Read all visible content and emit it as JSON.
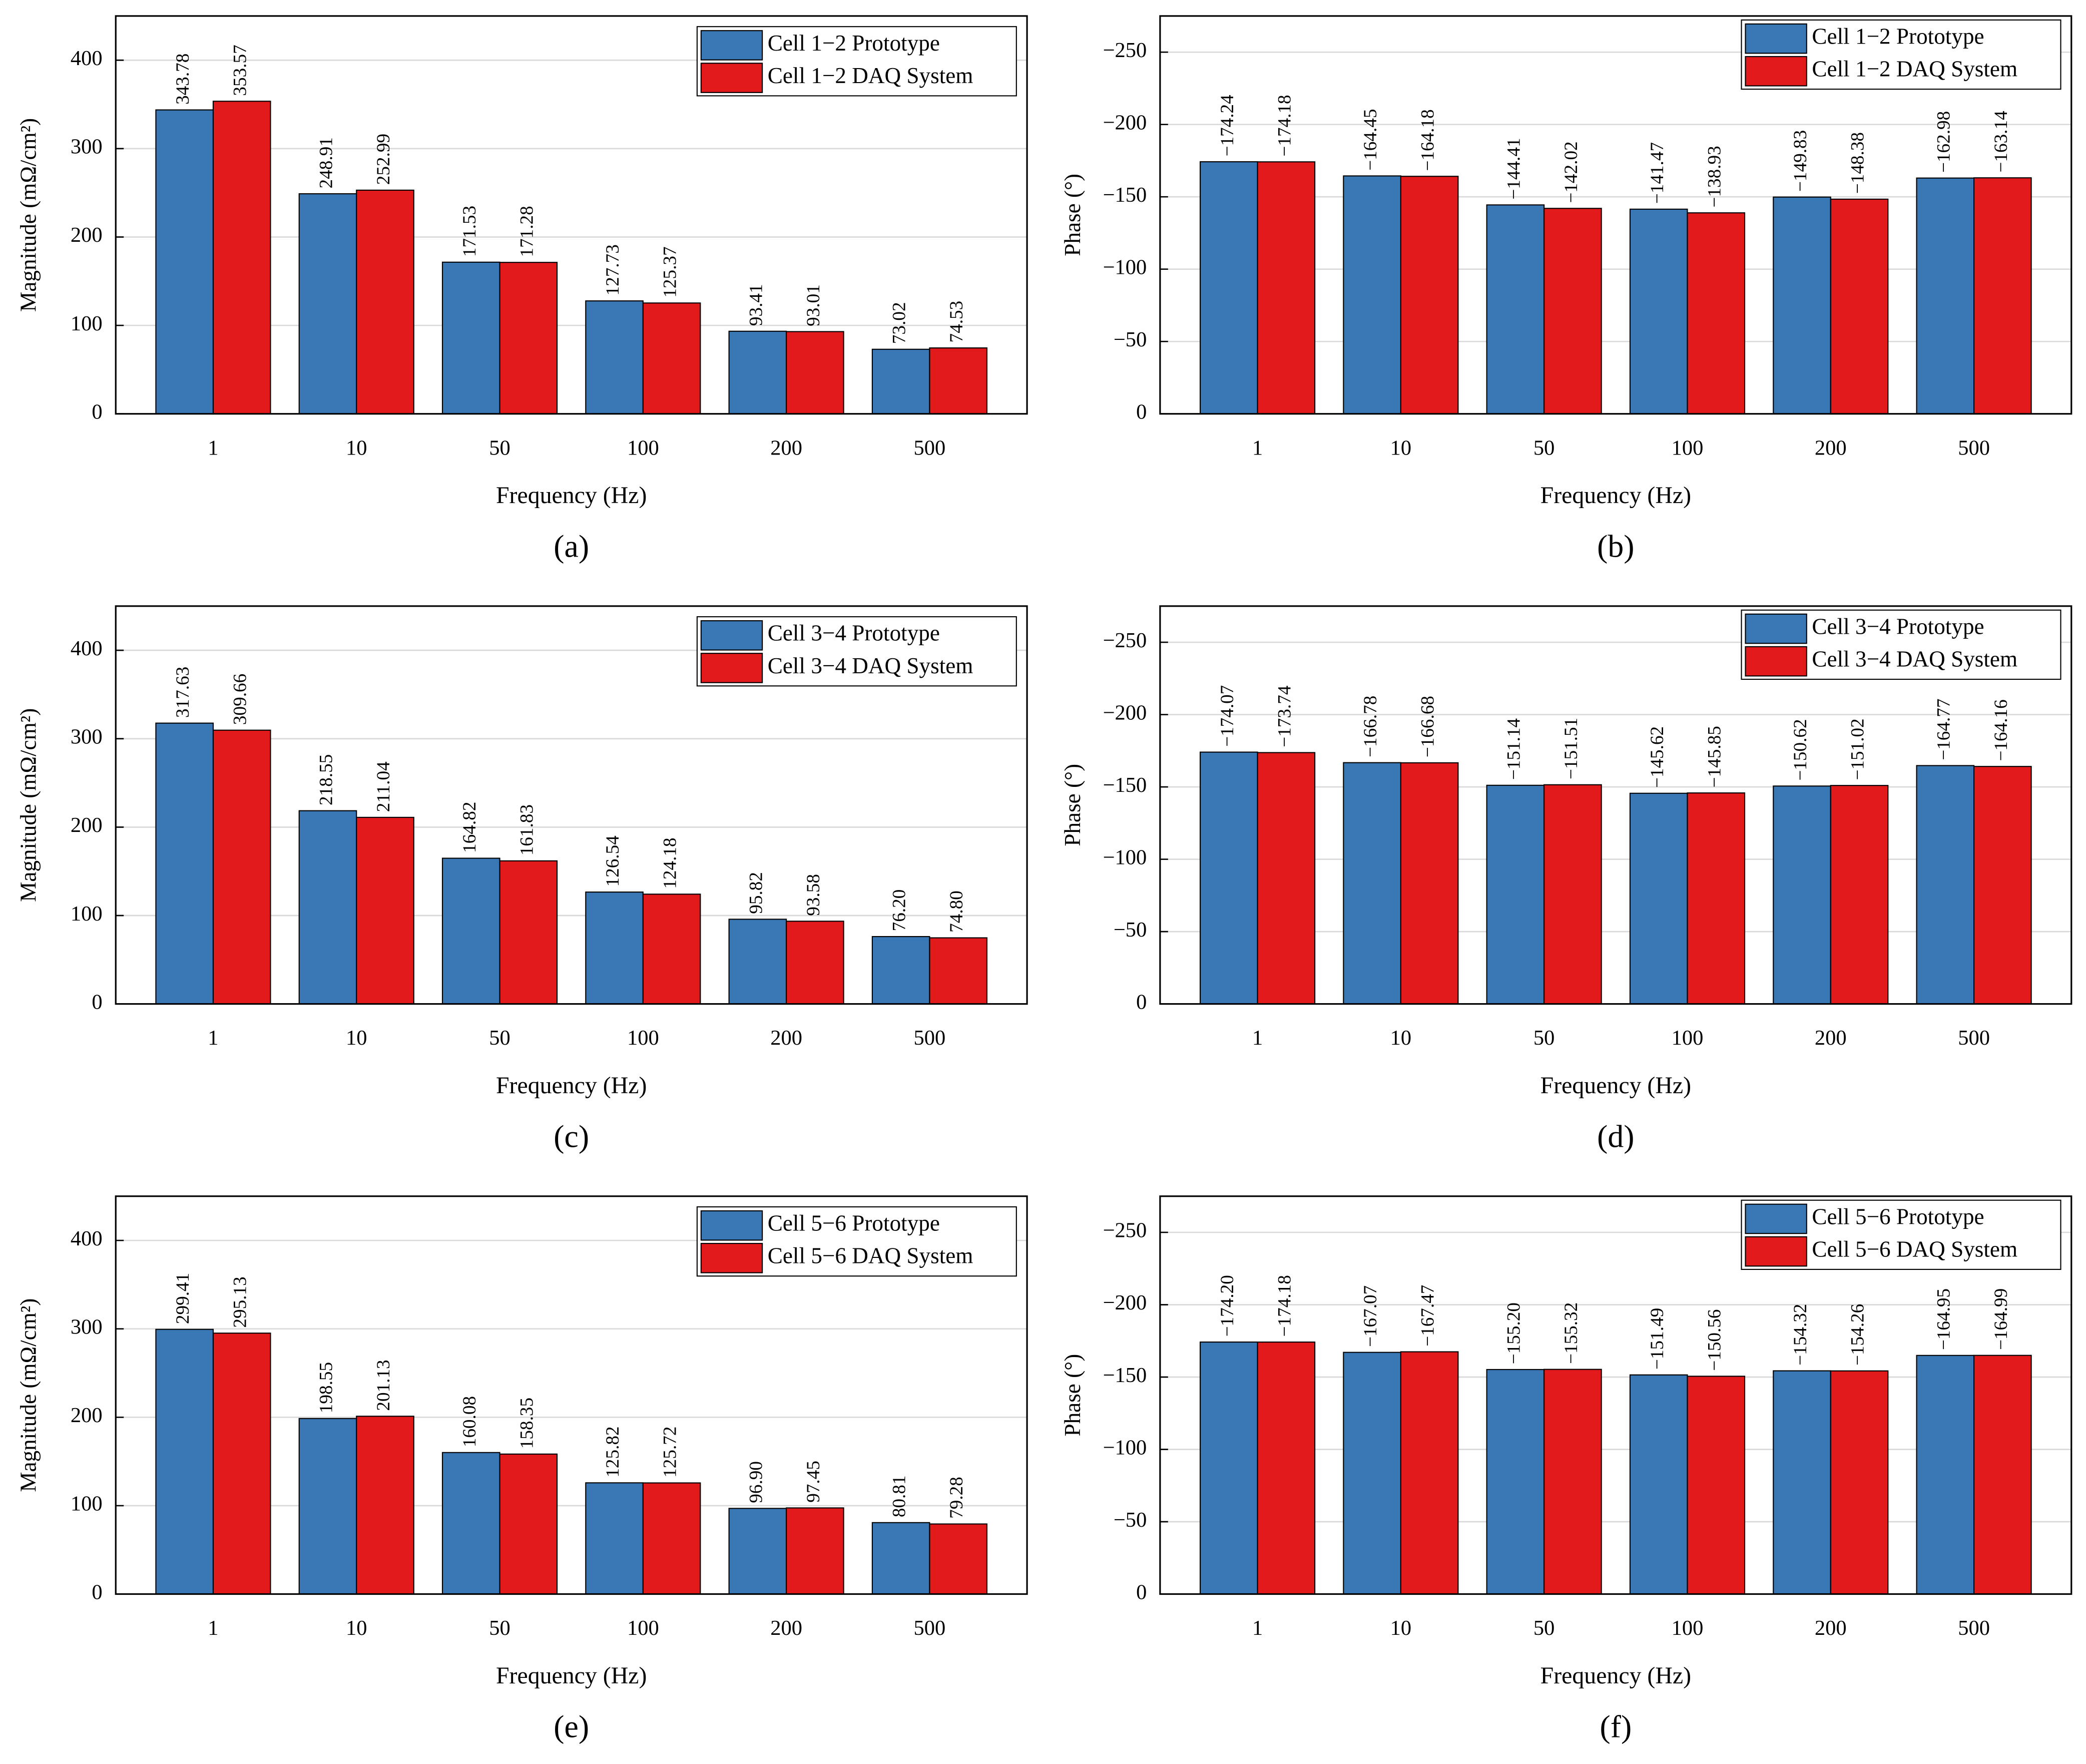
{
  "chart_data": [
    {
      "type": "bar",
      "caption": "(a)",
      "xlabel": "Frequency (Hz)",
      "ylabel": "Magnitude (mΩ/cm²)",
      "categories": [
        "1",
        "10",
        "50",
        "100",
        "200",
        "500"
      ],
      "series": [
        {
          "name": "Cell 1−2 Prototype",
          "color": "#3a78b5",
          "values": [
            343.78,
            248.91,
            171.53,
            127.73,
            93.41,
            73.02
          ],
          "value_labels": [
            "343.78",
            "248.91",
            "171.53",
            "127.73",
            "93.41",
            "73.02"
          ]
        },
        {
          "name": "Cell 1−2 DAQ System",
          "color": "#e31a1c",
          "values": [
            353.57,
            252.99,
            171.28,
            125.37,
            93.01,
            74.53
          ],
          "value_labels": [
            "353.57",
            "252.99",
            "171.28",
            "125.37",
            "93.01",
            "74.53"
          ]
        }
      ],
      "ylim": [
        0,
        450
      ],
      "yticks": [
        0,
        100,
        200,
        300,
        400
      ],
      "grid": true,
      "legend": "upper right"
    },
    {
      "type": "bar",
      "caption": "(b)",
      "xlabel": "Frequency (Hz)",
      "ylabel": "Phase (°)",
      "categories": [
        "1",
        "10",
        "50",
        "100",
        "200",
        "500"
      ],
      "series": [
        {
          "name": "Cell 1−2 Prototype",
          "color": "#3a78b5",
          "values": [
            -174.24,
            -164.45,
            -144.41,
            -141.47,
            -149.83,
            -162.98
          ],
          "value_labels": [
            "−174.24",
            "−164.45",
            "−144.41",
            "−141.47",
            "−149.83",
            "−162.98"
          ]
        },
        {
          "name": "Cell 1−2 DAQ System",
          "color": "#e31a1c",
          "values": [
            -174.18,
            -164.18,
            -142.02,
            -138.93,
            -148.38,
            -163.14
          ],
          "value_labels": [
            "−174.18",
            "−164.18",
            "−142.02",
            "−138.93",
            "−148.38",
            "−163.14"
          ]
        }
      ],
      "ylim": [
        0,
        -275
      ],
      "yticks": [
        0,
        {
          "value": -50,
          "label": "−50"
        },
        {
          "value": -100,
          "label": "−100"
        },
        {
          "value": -150,
          "label": "−150"
        },
        {
          "value": -200,
          "label": "−200"
        },
        {
          "value": -250,
          "label": "−250"
        }
      ],
      "grid": true,
      "legend": "upper right"
    },
    {
      "type": "bar",
      "caption": "(c)",
      "xlabel": "Frequency (Hz)",
      "ylabel": "Magnitude (mΩ/cm²)",
      "categories": [
        "1",
        "10",
        "50",
        "100",
        "200",
        "500"
      ],
      "series": [
        {
          "name": "Cell 3−4 Prototype",
          "color": "#3a78b5",
          "values": [
            317.63,
            218.55,
            164.82,
            126.54,
            95.82,
            76.2
          ],
          "value_labels": [
            "317.63",
            "218.55",
            "164.82",
            "126.54",
            "95.82",
            "76.20"
          ]
        },
        {
          "name": "Cell 3−4 DAQ System",
          "color": "#e31a1c",
          "values": [
            309.66,
            211.04,
            161.83,
            124.18,
            93.58,
            74.8
          ],
          "value_labels": [
            "309.66",
            "211.04",
            "161.83",
            "124.18",
            "93.58",
            "74.80"
          ]
        }
      ],
      "ylim": [
        0,
        450
      ],
      "yticks": [
        0,
        100,
        200,
        300,
        400
      ],
      "grid": true,
      "legend": "upper right"
    },
    {
      "type": "bar",
      "caption": "(d)",
      "xlabel": "Frequency (Hz)",
      "ylabel": "Phase (°)",
      "categories": [
        "1",
        "10",
        "50",
        "100",
        "200",
        "500"
      ],
      "series": [
        {
          "name": "Cell 3−4 Prototype",
          "color": "#3a78b5",
          "values": [
            -174.07,
            -166.78,
            -151.14,
            -145.62,
            -150.62,
            -164.77
          ],
          "value_labels": [
            "−174.07",
            "−166.78",
            "−151.14",
            "−145.62",
            "−150.62",
            "−164.77"
          ]
        },
        {
          "name": "Cell 3−4 DAQ System",
          "color": "#e31a1c",
          "values": [
            -173.74,
            -166.68,
            -151.51,
            -145.85,
            -151.02,
            -164.16
          ],
          "value_labels": [
            "−173.74",
            "−166.68",
            "−151.51",
            "−145.85",
            "−151.02",
            "−164.16"
          ]
        }
      ],
      "ylim": [
        0,
        -275
      ],
      "yticks": [
        0,
        {
          "value": -50,
          "label": "−50"
        },
        {
          "value": -100,
          "label": "−100"
        },
        {
          "value": -150,
          "label": "−150"
        },
        {
          "value": -200,
          "label": "−200"
        },
        {
          "value": -250,
          "label": "−250"
        }
      ],
      "grid": true,
      "legend": "upper right"
    },
    {
      "type": "bar",
      "caption": "(e)",
      "xlabel": "Frequency (Hz)",
      "ylabel": "Magnitude (mΩ/cm²)",
      "categories": [
        "1",
        "10",
        "50",
        "100",
        "200",
        "500"
      ],
      "series": [
        {
          "name": "Cell 5−6 Prototype",
          "color": "#3a78b5",
          "values": [
            299.41,
            198.55,
            160.08,
            125.82,
            96.9,
            80.81
          ],
          "value_labels": [
            "299.41",
            "198.55",
            "160.08",
            "125.82",
            "96.90",
            "80.81"
          ]
        },
        {
          "name": "Cell 5−6 DAQ System",
          "color": "#e31a1c",
          "values": [
            295.13,
            201.13,
            158.35,
            125.72,
            97.45,
            79.28
          ],
          "value_labels": [
            "295.13",
            "201.13",
            "158.35",
            "125.72",
            "97.45",
            "79.28"
          ]
        }
      ],
      "ylim": [
        0,
        450
      ],
      "yticks": [
        0,
        100,
        200,
        300,
        400
      ],
      "grid": true,
      "legend": "upper right"
    },
    {
      "type": "bar",
      "caption": "(f)",
      "xlabel": "Frequency (Hz)",
      "ylabel": "Phase (°)",
      "categories": [
        "1",
        "10",
        "50",
        "100",
        "200",
        "500"
      ],
      "series": [
        {
          "name": "Cell 5−6 Prototype",
          "color": "#3a78b5",
          "values": [
            -174.2,
            -167.07,
            -155.2,
            -151.49,
            -154.32,
            -164.95
          ],
          "value_labels": [
            "−174.20",
            "−167.07",
            "−155.20",
            "−151.49",
            "−154.32",
            "−164.95"
          ]
        },
        {
          "name": "Cell 5−6 DAQ System",
          "color": "#e31a1c",
          "values": [
            -174.18,
            -167.47,
            -155.32,
            -150.56,
            -154.26,
            -164.99
          ],
          "value_labels": [
            "−174.18",
            "−167.47",
            "−155.32",
            "−150.56",
            "−154.26",
            "−164.99"
          ]
        }
      ],
      "ylim": [
        0,
        -275
      ],
      "yticks": [
        0,
        {
          "value": -50,
          "label": "−50"
        },
        {
          "value": -100,
          "label": "−100"
        },
        {
          "value": -150,
          "label": "−150"
        },
        {
          "value": -200,
          "label": "−200"
        },
        {
          "value": -250,
          "label": "−250"
        }
      ],
      "grid": true,
      "legend": "upper right"
    }
  ]
}
